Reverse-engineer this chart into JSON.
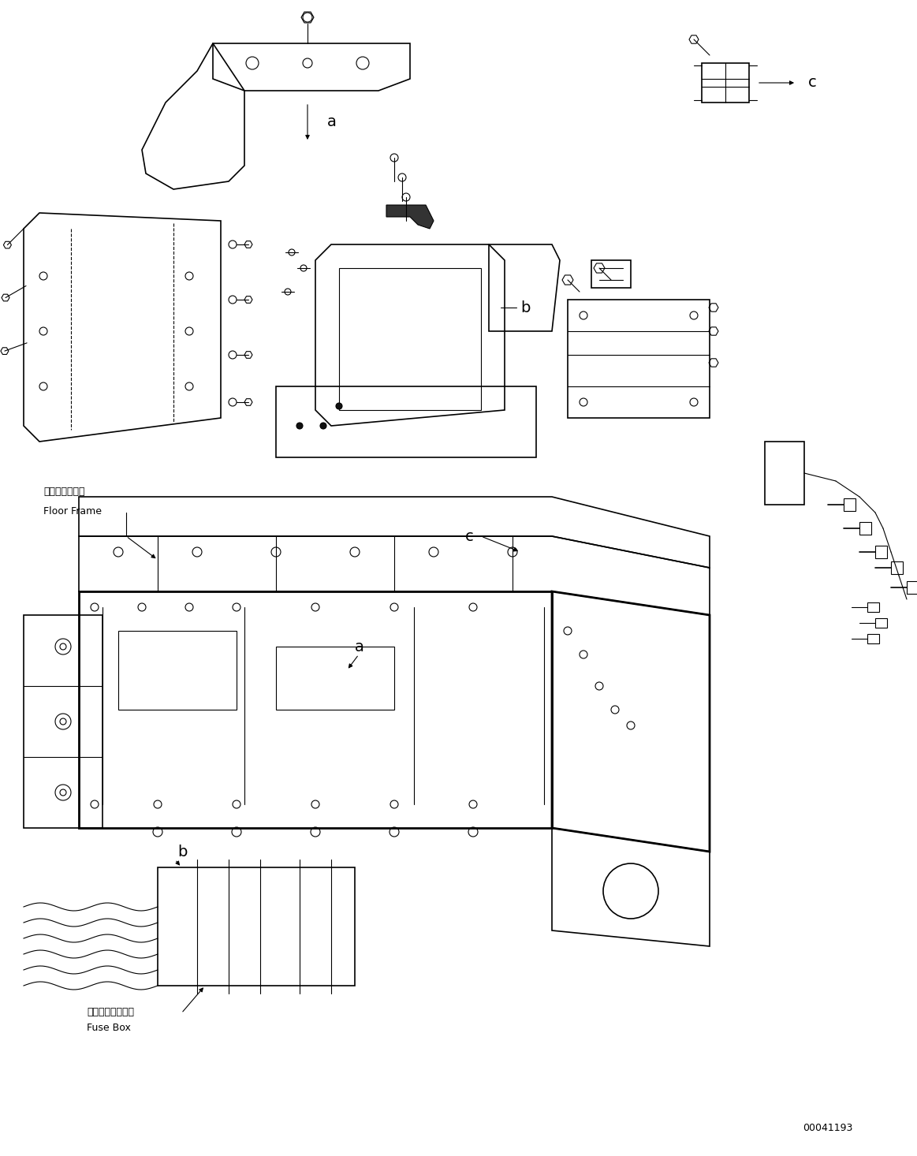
{
  "figure_width": 11.63,
  "figure_height": 14.66,
  "dpi": 100,
  "bg_color": "#ffffff",
  "line_color": "#000000",
  "part_number": "00041193",
  "labels": {
    "floor_frame_jp": "フロアフレーム",
    "floor_frame_en": "Floor Frame",
    "fuse_box_jp": "フューズボックス",
    "fuse_box_en": "Fuse Box"
  },
  "callouts": [
    "a",
    "b",
    "c"
  ]
}
